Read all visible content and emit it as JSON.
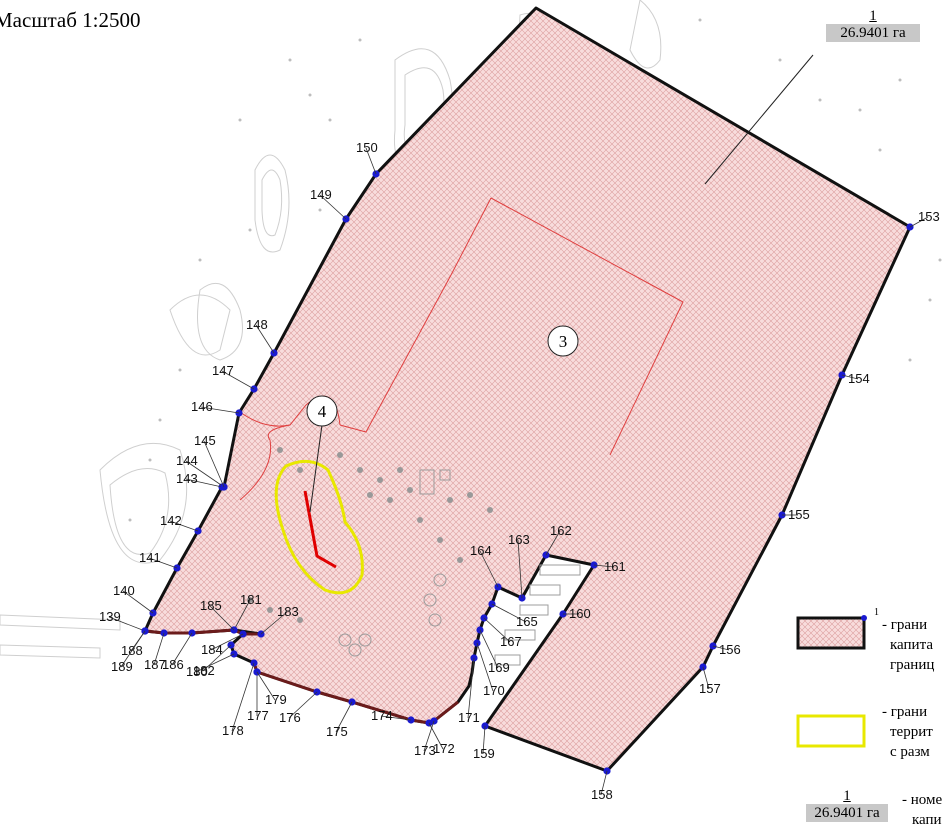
{
  "scale": "Масштаб 1:2500",
  "parcel_label": {
    "number": "1",
    "area": "26.9401 га"
  },
  "zone_labels": [
    "3",
    "4"
  ],
  "boundary_points": [
    "139",
    "140",
    "141",
    "142",
    "143",
    "144",
    "145",
    "146",
    "147",
    "148",
    "149",
    "150",
    "153",
    "154",
    "155",
    "156",
    "157",
    "158",
    "159",
    "160",
    "161",
    "162",
    "163",
    "164",
    "165",
    "167",
    "169",
    "170",
    "171",
    "172",
    "173",
    "174",
    "175",
    "176",
    "177",
    "178",
    "179",
    "180",
    "181",
    "182",
    "183",
    "184",
    "185",
    "186",
    "187",
    "188",
    "189"
  ],
  "legend": {
    "items": [
      {
        "marker_number": "1",
        "text": [
          "- грани",
          "капита",
          "границ"
        ]
      },
      {
        "text": [
          "- грани",
          "террит",
          "с разм"
        ]
      },
      {
        "label_number": "1",
        "label_area": "26.9401 га",
        "text": [
          "- номе",
          "капи"
        ]
      }
    ]
  },
  "colors": {
    "parcel_fill": "#f7d5d5",
    "parcel_hatch": "#e0a0a0",
    "boundary": "#111111",
    "points": "#1a1ad0",
    "zone3_outline": "#e04040",
    "zone4_outline": "#e8e800",
    "zone4_line": "#e00000",
    "south_edge": "#6b1b1b"
  }
}
